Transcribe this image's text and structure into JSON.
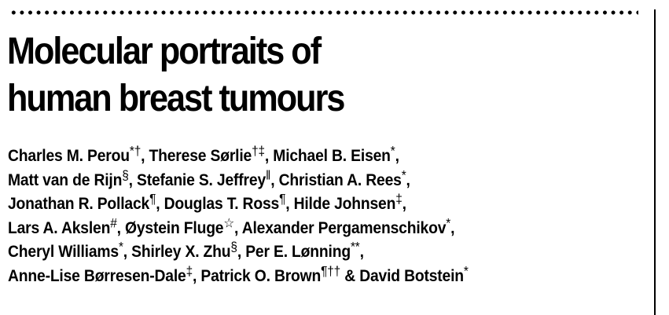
{
  "title": {
    "line1": "Molecular portraits of",
    "line2": "human breast tumours"
  },
  "authors": [
    [
      {
        "name": "Charles M. Perou",
        "aff": "*†",
        "sep": ", "
      },
      {
        "name": "Therese Sørlie",
        "aff": "†‡",
        "sep": ", "
      },
      {
        "name": "Michael B. Eisen",
        "aff": "*",
        "sep": ","
      }
    ],
    [
      {
        "name": "Matt van de Rijn",
        "aff": "§",
        "sep": ", "
      },
      {
        "name": "Stefanie S. Jeffrey",
        "aff": "‖",
        "sep": ", "
      },
      {
        "name": "Christian A. Rees",
        "aff": "*",
        "sep": ","
      }
    ],
    [
      {
        "name": "Jonathan R. Pollack",
        "aff": "¶",
        "sep": ", "
      },
      {
        "name": "Douglas T. Ross",
        "aff": "¶",
        "sep": ", "
      },
      {
        "name": "Hilde Johnsen",
        "aff": "‡",
        "sep": ","
      }
    ],
    [
      {
        "name": "Lars A. Akslen",
        "aff": "#",
        "sep": ", "
      },
      {
        "name": "Øystein Fluge",
        "aff": "☆",
        "sep": ", "
      },
      {
        "name": "Alexander Pergamenschikov",
        "aff": "*",
        "sep": ","
      }
    ],
    [
      {
        "name": "Cheryl Williams",
        "aff": "*",
        "sep": ", "
      },
      {
        "name": "Shirley X. Zhu",
        "aff": "§",
        "sep": ", "
      },
      {
        "name": "Per E. Lønning",
        "aff": "**",
        "sep": ","
      }
    ],
    [
      {
        "name": "Anne-Lise Børresen-Dale",
        "aff": "‡",
        "sep": ", "
      },
      {
        "name": "Patrick O. Brown",
        "aff": "¶††",
        "sep": " & "
      },
      {
        "name": "David Botstein",
        "aff": "*",
        "sep": ""
      }
    ]
  ]
}
